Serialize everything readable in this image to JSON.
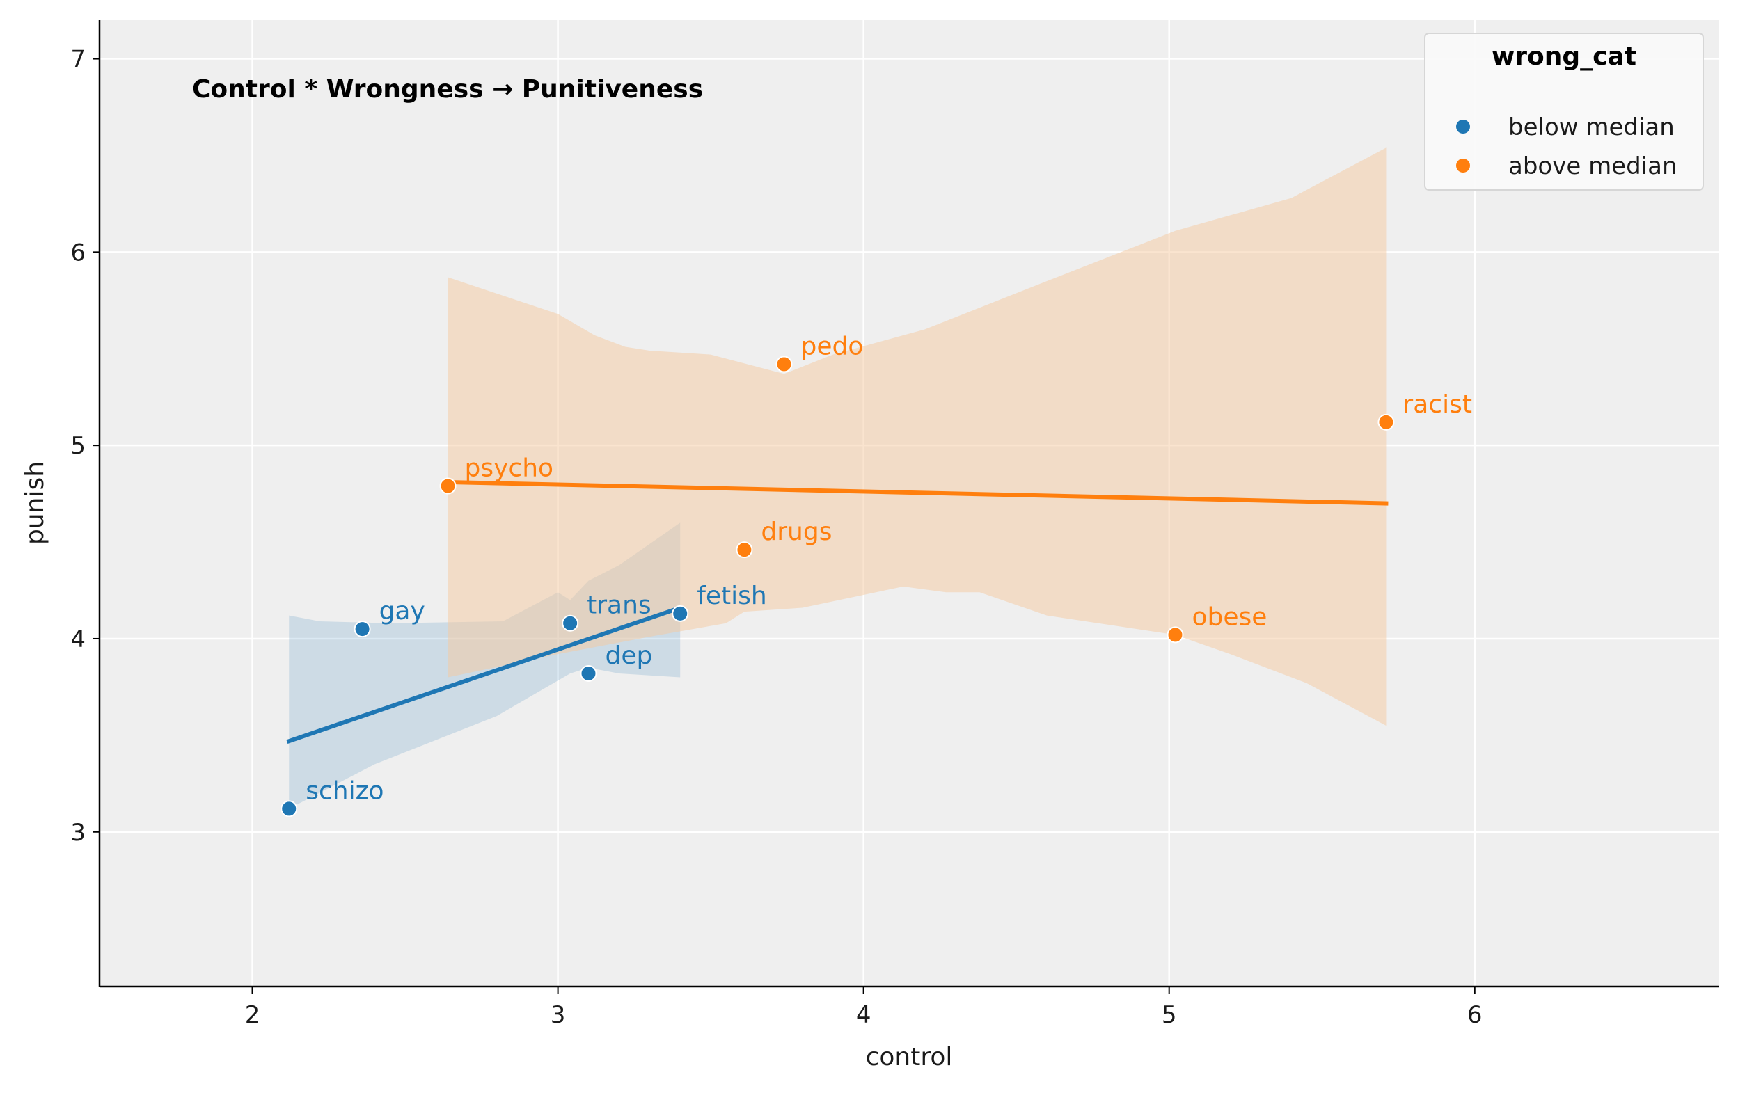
{
  "chart_data": {
    "type": "scatter",
    "annotation": "Control * Wrongness → Punitiveness",
    "xlabel": "control",
    "ylabel": "punish",
    "xlim": [
      1.5,
      6.8
    ],
    "ylim": [
      2.2,
      7.2
    ],
    "xticks": [
      2,
      3,
      4,
      5,
      6
    ],
    "yticks": [
      3,
      4,
      5,
      6,
      7
    ],
    "grid": true,
    "legend": {
      "title": "wrong_cat",
      "placement": "top-right"
    },
    "series": [
      {
        "name": "below median",
        "color": "#1f77b4",
        "band_color": "#1f77b4",
        "points": [
          {
            "label": "schizo",
            "x": 2.12,
            "y": 3.12
          },
          {
            "label": "gay",
            "x": 2.36,
            "y": 4.05
          },
          {
            "label": "trans",
            "x": 3.04,
            "y": 4.08
          },
          {
            "label": "dep",
            "x": 3.1,
            "y": 3.82
          },
          {
            "label": "fetish",
            "x": 3.4,
            "y": 4.13
          }
        ],
        "fit": {
          "x": [
            2.12,
            3.4
          ],
          "y": [
            3.47,
            4.16
          ]
        },
        "band": {
          "upper": [
            [
              2.12,
              4.12
            ],
            [
              2.22,
              4.09
            ],
            [
              2.45,
              4.08
            ],
            [
              2.82,
              4.09
            ],
            [
              3.0,
              4.24
            ],
            [
              3.04,
              4.2
            ],
            [
              3.1,
              4.3
            ],
            [
              3.2,
              4.38
            ],
            [
              3.4,
              4.6
            ]
          ],
          "lower": [
            [
              2.12,
              3.12
            ],
            [
              2.4,
              3.35
            ],
            [
              2.8,
              3.6
            ],
            [
              3.04,
              3.82
            ],
            [
              3.1,
              3.85
            ],
            [
              3.2,
              3.82
            ],
            [
              3.4,
              3.8
            ]
          ]
        }
      },
      {
        "name": "above median",
        "color": "#ff7f0e",
        "band_color": "#f5c9a0",
        "points": [
          {
            "label": "psycho",
            "x": 2.64,
            "y": 4.79
          },
          {
            "label": "pedo",
            "x": 3.74,
            "y": 5.42
          },
          {
            "label": "drugs",
            "x": 3.61,
            "y": 4.46
          },
          {
            "label": "racist",
            "x": 5.71,
            "y": 5.12
          },
          {
            "label": "obese",
            "x": 5.02,
            "y": 4.02
          }
        ],
        "fit": {
          "x": [
            2.64,
            5.71
          ],
          "y": [
            4.81,
            4.7
          ]
        },
        "band": {
          "upper": [
            [
              2.64,
              5.87
            ],
            [
              3.0,
              5.68
            ],
            [
              3.12,
              5.57
            ],
            [
              3.22,
              5.51
            ],
            [
              3.3,
              5.49
            ],
            [
              3.5,
              5.47
            ],
            [
              3.74,
              5.37
            ],
            [
              3.9,
              5.47
            ],
            [
              4.2,
              5.6
            ],
            [
              4.6,
              5.85
            ],
            [
              5.02,
              6.11
            ],
            [
              5.4,
              6.28
            ],
            [
              5.71,
              6.54
            ]
          ],
          "lower": [
            [
              2.64,
              3.8
            ],
            [
              3.0,
              3.92
            ],
            [
              3.3,
              4.01
            ],
            [
              3.55,
              4.08
            ],
            [
              3.61,
              4.14
            ],
            [
              3.8,
              4.16
            ],
            [
              4.13,
              4.27
            ],
            [
              4.27,
              4.24
            ],
            [
              4.38,
              4.24
            ],
            [
              4.6,
              4.12
            ],
            [
              5.02,
              4.02
            ],
            [
              5.2,
              3.92
            ],
            [
              5.45,
              3.77
            ],
            [
              5.71,
              3.55
            ]
          ]
        }
      }
    ]
  }
}
